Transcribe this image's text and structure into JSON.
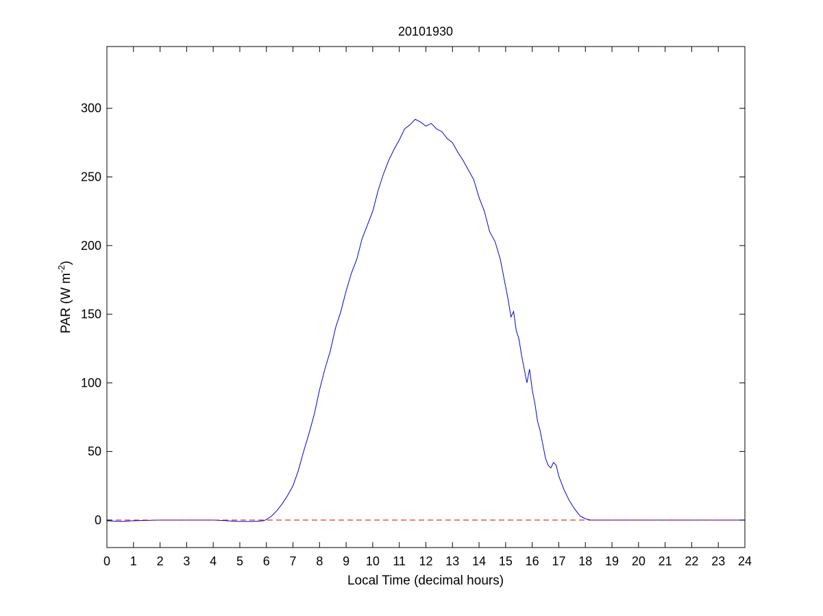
{
  "chart_data": {
    "type": "line",
    "title": "20101930",
    "xlabel": "Local Time (decimal hours)",
    "ylabel": {
      "base": "PAR (W m",
      "exp": "-2",
      "close": ")"
    },
    "xlim": [
      0,
      24
    ],
    "ylim": [
      -20,
      345
    ],
    "xticks": [
      0,
      1,
      2,
      3,
      4,
      5,
      6,
      7,
      8,
      9,
      10,
      11,
      12,
      13,
      14,
      15,
      16,
      17,
      18,
      19,
      20,
      21,
      22,
      23,
      24
    ],
    "yticks": [
      0,
      50,
      100,
      150,
      200,
      250,
      300
    ],
    "grid": false,
    "series": [
      {
        "color": "#0000cc",
        "style": "solid",
        "x": [
          0,
          0.5,
          1,
          2,
          3,
          4,
          4.5,
          5,
          5.5,
          5.9,
          6.0,
          6.2,
          6.4,
          6.6,
          6.8,
          7.0,
          7.2,
          7.4,
          7.6,
          7.8,
          8.0,
          8.2,
          8.4,
          8.6,
          8.8,
          9.0,
          9.2,
          9.4,
          9.6,
          9.8,
          10.0,
          10.2,
          10.4,
          10.6,
          10.8,
          11.0,
          11.2,
          11.4,
          11.6,
          11.8,
          12.0,
          12.2,
          12.4,
          12.6,
          12.8,
          13.0,
          13.2,
          13.4,
          13.6,
          13.8,
          14.0,
          14.2,
          14.4,
          14.6,
          14.8,
          15.0,
          15.1,
          15.2,
          15.3,
          15.4,
          15.5,
          15.6,
          15.7,
          15.8,
          15.9,
          16.0,
          16.1,
          16.2,
          16.3,
          16.4,
          16.5,
          16.6,
          16.7,
          16.8,
          16.9,
          17.0,
          17.2,
          17.4,
          17.6,
          17.8,
          18.0,
          18.2,
          18.5,
          19,
          20,
          21,
          22,
          23,
          24
        ],
        "y": [
          -0.5,
          -1,
          -0.5,
          0,
          0,
          0,
          -0.5,
          -1,
          -1,
          -0.5,
          0.5,
          3,
          7,
          12,
          18,
          25,
          36,
          50,
          63,
          77,
          95,
          110,
          123,
          140,
          152,
          167,
          180,
          190,
          205,
          215,
          225,
          240,
          252,
          262,
          270,
          277,
          285,
          288,
          292,
          290,
          287,
          289,
          285,
          283,
          278,
          275,
          268,
          262,
          255,
          248,
          235,
          225,
          210,
          203,
          190,
          170,
          160,
          148,
          152,
          138,
          132,
          120,
          110,
          100,
          110,
          95,
          85,
          72,
          65,
          55,
          45,
          40,
          38,
          42,
          40,
          32,
          22,
          14,
          8,
          3,
          1,
          0,
          0,
          0,
          0,
          0,
          0,
          0,
          0
        ]
      },
      {
        "color": "#cc0000",
        "style": "dashed",
        "x": [
          0,
          24
        ],
        "y": [
          0,
          0
        ]
      }
    ]
  }
}
